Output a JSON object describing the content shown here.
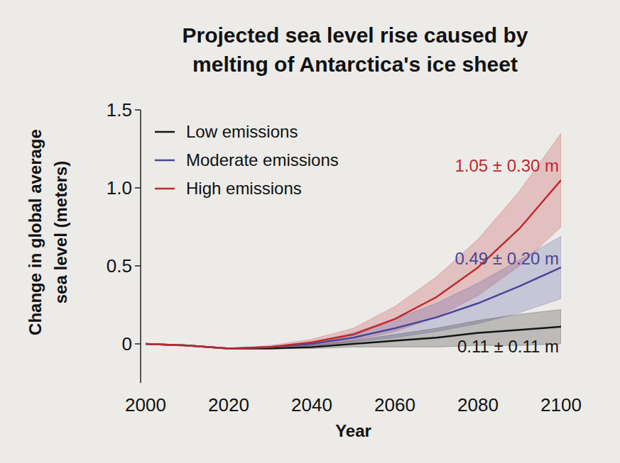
{
  "chart_data": {
    "type": "line",
    "title": "Projected sea level rise caused by\nmelting of Antarctica's ice sheet",
    "x_label": "Year",
    "y_label": "Change in global average\nsea level (meters)",
    "x": [
      2000,
      2010,
      2020,
      2030,
      2040,
      2050,
      2060,
      2070,
      2080,
      2090,
      2100
    ],
    "xlim": [
      2000,
      2100
    ],
    "xticks": [
      2000,
      2020,
      2040,
      2060,
      2080,
      2100
    ],
    "ylim": [
      -0.25,
      1.5
    ],
    "yticks": [
      0,
      0.5,
      {
        "value": 1,
        "label": "1.0"
      },
      1.5
    ],
    "grid": false,
    "legend": "upper left",
    "series": [
      {
        "name": "Low emissions",
        "color": "#141414",
        "label": "0.11 ± 0.11 m",
        "values": [
          0,
          -0.01,
          -0.03,
          -0.03,
          -0.02,
          0,
          0.02,
          0.04,
          0.07,
          0.09,
          0.11
        ],
        "errors": [
          0,
          0,
          0,
          0,
          0.01,
          0.02,
          0.04,
          0.06,
          0.08,
          0.1,
          0.11
        ]
      },
      {
        "name": "Moderate emissions",
        "color": "#46469a",
        "label": "0.49 ± 0.20 m",
        "values": [
          0,
          -0.01,
          -0.03,
          -0.02,
          0,
          0.04,
          0.1,
          0.17,
          0.26,
          0.37,
          0.49
        ],
        "errors": [
          0,
          0,
          0,
          0,
          0.01,
          0.03,
          0.06,
          0.09,
          0.13,
          0.17,
          0.2
        ]
      },
      {
        "name": "High emissions",
        "color": "#c0282d",
        "label": "1.05 ± 0.30 m",
        "values": [
          0,
          -0.01,
          -0.03,
          -0.02,
          0.01,
          0.06,
          0.16,
          0.3,
          0.49,
          0.74,
          1.05
        ],
        "errors": [
          0,
          0,
          0,
          0.01,
          0.02,
          0.04,
          0.08,
          0.13,
          0.18,
          0.24,
          0.3
        ]
      }
    ]
  }
}
